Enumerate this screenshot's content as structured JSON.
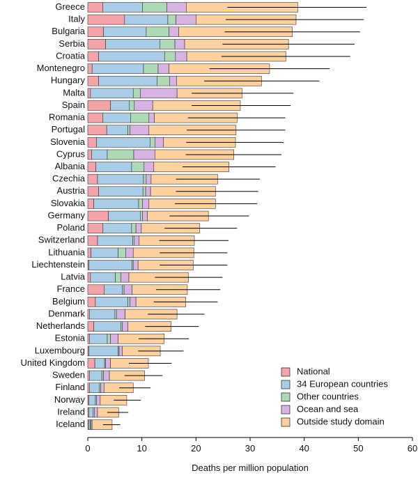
{
  "chart_data": {
    "type": "bar",
    "orientation": "horizontal",
    "stacked": true,
    "xlabel": "Deaths per million population",
    "xlim": [
      0,
      60
    ],
    "xticks": [
      0,
      10,
      20,
      30,
      40,
      50,
      60
    ],
    "grid": false,
    "legend_position": "bottom-right",
    "categories": [
      "Greece",
      "Italy",
      "Bulgaria",
      "Serbia",
      "Croatia",
      "Montenegro",
      "Hungary",
      "Malta",
      "Spain",
      "Romania",
      "Portugal",
      "Slovenia",
      "Cyprus",
      "Albania",
      "Czechia",
      "Austria",
      "Slovakia",
      "Germany",
      "Poland",
      "Switzerland",
      "Lithuania",
      "Liechtenstein",
      "Latvia",
      "France",
      "Belgium",
      "Denmark",
      "Netherlands",
      "Estonia",
      "Luxembourg",
      "United Kingdom",
      "Sweden",
      "Finland",
      "Norway",
      "Ireland",
      "Iceland"
    ],
    "series": [
      {
        "name": "National",
        "color": "#f4a3a8",
        "values": [
          2.8,
          6.8,
          2.9,
          3.3,
          2.0,
          0.8,
          2.0,
          0.5,
          4.2,
          2.8,
          3.5,
          1.6,
          0.7,
          1.5,
          1.8,
          2.0,
          1.1,
          3.8,
          2.8,
          1.8,
          0.6,
          0.2,
          0.5,
          3.0,
          1.4,
          0.3,
          1.1,
          0.3,
          0.2,
          1.3,
          0.3,
          0.3,
          0.2,
          0.2,
          0.2
        ]
      },
      {
        "name": "34 European countries",
        "color": "#a9cde6",
        "values": [
          7.3,
          8.0,
          7.9,
          10.0,
          12.2,
          9.5,
          10.8,
          7.9,
          3.5,
          5.1,
          3.9,
          9.9,
          2.9,
          6.6,
          8.5,
          8.2,
          8.3,
          5.9,
          5.3,
          6.5,
          5.0,
          8.0,
          4.6,
          3.4,
          6.0,
          4.7,
          5.0,
          3.3,
          5.4,
          1.8,
          2.3,
          1.8,
          1.2,
          0.8,
          0.3
        ]
      },
      {
        "name": "Other countries",
        "color": "#aed9b6",
        "values": [
          4.5,
          1.5,
          4.2,
          2.8,
          2.0,
          2.7,
          2.3,
          1.3,
          0.9,
          3.4,
          0.4,
          0.9,
          4.9,
          2.3,
          0.5,
          0.5,
          0.7,
          0.4,
          0.8,
          0.3,
          1.4,
          0.2,
          1.0,
          0.3,
          0.4,
          0.3,
          0.3,
          0.6,
          0.2,
          0.2,
          0.3,
          0.3,
          0.2,
          0.2,
          0.1
        ]
      },
      {
        "name": "Ocean and sea",
        "color": "#d7b3e3",
        "values": [
          3.6,
          3.7,
          1.8,
          1.8,
          2.1,
          2.0,
          1.3,
          6.8,
          3.4,
          1.0,
          3.5,
          1.6,
          3.9,
          1.8,
          0.9,
          0.9,
          1.2,
          0.9,
          1.0,
          0.9,
          1.4,
          0.9,
          1.5,
          1.5,
          1.1,
          1.6,
          1.0,
          1.4,
          0.6,
          0.9,
          1.1,
          0.6,
          0.7,
          0.6,
          0.2
        ]
      },
      {
        "name": "Outside study domain",
        "color": "#fcd09f",
        "values": [
          20.6,
          18.5,
          21.0,
          19.2,
          18.3,
          18.6,
          15.7,
          12.0,
          16.2,
          15.3,
          16.1,
          13.3,
          14.6,
          13.9,
          12.3,
          12.0,
          12.3,
          11.3,
          10.8,
          10.2,
          11.2,
          10.2,
          11.0,
          10.2,
          9.2,
          9.6,
          8.0,
          8.5,
          7.0,
          7.0,
          6.5,
          5.4,
          4.9,
          3.9,
          3.7
        ]
      }
    ],
    "error_upper": [
      51.5,
      51.0,
      50.3,
      49.3,
      48.5,
      44.7,
      42.8,
      38.0,
      37.5,
      36.5,
      36.5,
      36.2,
      35.8,
      34.7,
      31.8,
      31.5,
      31.3,
      29.8,
      27.6,
      26.0,
      25.8,
      25.8,
      24.9,
      24.5,
      24.0,
      21.6,
      20.5,
      18.7,
      17.7,
      15.5,
      13.8,
      11.6,
      9.8,
      7.5,
      6.0
    ],
    "error_lower": [
      25.8,
      25.5,
      25.3,
      24.9,
      24.7,
      22.5,
      21.5,
      19.2,
      19.2,
      18.5,
      18.3,
      18.2,
      18.1,
      17.5,
      16.3,
      16.3,
      16.1,
      15.1,
      14.2,
      13.2,
      13.3,
      13.3,
      12.4,
      12.6,
      12.2,
      11.1,
      10.6,
      9.4,
      9.3,
      7.6,
      6.8,
      5.8,
      4.8,
      3.6,
      2.8
    ]
  }
}
